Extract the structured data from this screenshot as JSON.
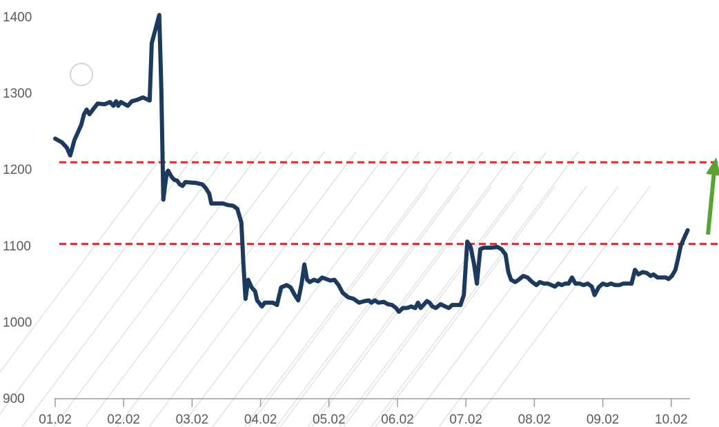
{
  "chart_data": {
    "type": "line",
    "title": "",
    "xlabel": "",
    "ylabel": "",
    "ylim": [
      900,
      1400
    ],
    "xlim": [
      0,
      9.28
    ],
    "grid": false,
    "legend": "none",
    "x_ticks": [
      {
        "x": 0,
        "label": "01.02"
      },
      {
        "x": 1,
        "label": "02.02"
      },
      {
        "x": 2,
        "label": "03.02"
      },
      {
        "x": 3,
        "label": "04.02"
      },
      {
        "x": 4,
        "label": "05.02"
      },
      {
        "x": 5,
        "label": "06.02"
      },
      {
        "x": 6,
        "label": "07.02"
      },
      {
        "x": 7,
        "label": "08.02"
      },
      {
        "x": 8,
        "label": "09.02"
      },
      {
        "x": 9,
        "label": "10.02"
      }
    ],
    "y_ticks": [
      900,
      1000,
      1100,
      1200,
      1300,
      1400
    ],
    "series": [
      {
        "color": "#1b3a5e",
        "points": [
          [
            0.0,
            1240
          ],
          [
            0.1,
            1235
          ],
          [
            0.17,
            1228
          ],
          [
            0.22,
            1218
          ],
          [
            0.28,
            1238
          ],
          [
            0.38,
            1258
          ],
          [
            0.42,
            1272
          ],
          [
            0.46,
            1278
          ],
          [
            0.5,
            1272
          ],
          [
            0.55,
            1278
          ],
          [
            0.62,
            1286
          ],
          [
            0.72,
            1285
          ],
          [
            0.8,
            1288
          ],
          [
            0.85,
            1283
          ],
          [
            0.89,
            1289
          ],
          [
            0.92,
            1283
          ],
          [
            0.96,
            1288
          ],
          [
            1.02,
            1285
          ],
          [
            1.06,
            1283
          ],
          [
            1.12,
            1289
          ],
          [
            1.2,
            1291
          ],
          [
            1.28,
            1294
          ],
          [
            1.33,
            1292
          ],
          [
            1.38,
            1290
          ],
          [
            1.41,
            1365
          ],
          [
            1.47,
            1385
          ],
          [
            1.52,
            1402
          ],
          [
            1.55,
            1305
          ],
          [
            1.58,
            1160
          ],
          [
            1.6,
            1175
          ],
          [
            1.63,
            1195
          ],
          [
            1.65,
            1198
          ],
          [
            1.7,
            1190
          ],
          [
            1.74,
            1186
          ],
          [
            1.78,
            1185
          ],
          [
            1.82,
            1180
          ],
          [
            1.86,
            1178
          ],
          [
            1.9,
            1183
          ],
          [
            2.05,
            1182
          ],
          [
            2.15,
            1180
          ],
          [
            2.2,
            1175
          ],
          [
            2.25,
            1168
          ],
          [
            2.28,
            1155
          ],
          [
            2.45,
            1155
          ],
          [
            2.52,
            1153
          ],
          [
            2.6,
            1152
          ],
          [
            2.66,
            1148
          ],
          [
            2.72,
            1130
          ],
          [
            2.75,
            1075
          ],
          [
            2.78,
            1030
          ],
          [
            2.82,
            1055
          ],
          [
            2.87,
            1045
          ],
          [
            2.92,
            1040
          ],
          [
            2.95,
            1028
          ],
          [
            3.02,
            1020
          ],
          [
            3.06,
            1025
          ],
          [
            3.12,
            1025
          ],
          [
            3.18,
            1025
          ],
          [
            3.24,
            1022
          ],
          [
            3.3,
            1045
          ],
          [
            3.38,
            1048
          ],
          [
            3.44,
            1045
          ],
          [
            3.5,
            1035
          ],
          [
            3.55,
            1028
          ],
          [
            3.6,
            1050
          ],
          [
            3.64,
            1075
          ],
          [
            3.68,
            1055
          ],
          [
            3.72,
            1052
          ],
          [
            3.78,
            1055
          ],
          [
            3.84,
            1053
          ],
          [
            3.9,
            1058
          ],
          [
            3.96,
            1056
          ],
          [
            4.02,
            1054
          ],
          [
            4.08,
            1055
          ],
          [
            4.14,
            1048
          ],
          [
            4.2,
            1038
          ],
          [
            4.28,
            1032
          ],
          [
            4.36,
            1030
          ],
          [
            4.44,
            1025
          ],
          [
            4.52,
            1027
          ],
          [
            4.58,
            1028
          ],
          [
            4.62,
            1025
          ],
          [
            4.67,
            1028
          ],
          [
            4.72,
            1025
          ],
          [
            4.8,
            1026
          ],
          [
            4.86,
            1023
          ],
          [
            4.92,
            1022
          ],
          [
            4.98,
            1018
          ],
          [
            5.02,
            1013
          ],
          [
            5.08,
            1018
          ],
          [
            5.14,
            1018
          ],
          [
            5.2,
            1020
          ],
          [
            5.26,
            1018
          ],
          [
            5.3,
            1025
          ],
          [
            5.34,
            1018
          ],
          [
            5.38,
            1022
          ],
          [
            5.43,
            1027
          ],
          [
            5.47,
            1025
          ],
          [
            5.51,
            1020
          ],
          [
            5.56,
            1018
          ],
          [
            5.63,
            1023
          ],
          [
            5.7,
            1020
          ],
          [
            5.75,
            1018
          ],
          [
            5.8,
            1022
          ],
          [
            5.86,
            1022
          ],
          [
            5.92,
            1022
          ],
          [
            5.97,
            1035
          ],
          [
            6.02,
            1105
          ],
          [
            6.07,
            1098
          ],
          [
            6.12,
            1075
          ],
          [
            6.16,
            1050
          ],
          [
            6.21,
            1095
          ],
          [
            6.26,
            1097
          ],
          [
            6.36,
            1097
          ],
          [
            6.46,
            1098
          ],
          [
            6.52,
            1095
          ],
          [
            6.58,
            1088
          ],
          [
            6.62,
            1065
          ],
          [
            6.66,
            1055
          ],
          [
            6.72,
            1052
          ],
          [
            6.77,
            1055
          ],
          [
            6.84,
            1060
          ],
          [
            6.9,
            1058
          ],
          [
            6.97,
            1052
          ],
          [
            7.03,
            1048
          ],
          [
            7.08,
            1052
          ],
          [
            7.14,
            1050
          ],
          [
            7.2,
            1050
          ],
          [
            7.25,
            1048
          ],
          [
            7.3,
            1046
          ],
          [
            7.35,
            1050
          ],
          [
            7.4,
            1048
          ],
          [
            7.45,
            1050
          ],
          [
            7.5,
            1050
          ],
          [
            7.55,
            1058
          ],
          [
            7.6,
            1050
          ],
          [
            7.66,
            1050
          ],
          [
            7.72,
            1048
          ],
          [
            7.78,
            1050
          ],
          [
            7.84,
            1046
          ],
          [
            7.88,
            1035
          ],
          [
            7.94,
            1045
          ],
          [
            8.0,
            1050
          ],
          [
            8.06,
            1048
          ],
          [
            8.12,
            1050
          ],
          [
            8.18,
            1048
          ],
          [
            8.24,
            1048
          ],
          [
            8.3,
            1050
          ],
          [
            8.36,
            1050
          ],
          [
            8.42,
            1050
          ],
          [
            8.47,
            1068
          ],
          [
            8.52,
            1062
          ],
          [
            8.58,
            1065
          ],
          [
            8.64,
            1064
          ],
          [
            8.7,
            1060
          ],
          [
            8.74,
            1062
          ],
          [
            8.8,
            1058
          ],
          [
            8.86,
            1058
          ],
          [
            8.92,
            1058
          ],
          [
            8.96,
            1056
          ],
          [
            9.01,
            1060
          ],
          [
            9.06,
            1068
          ],
          [
            9.1,
            1083
          ],
          [
            9.14,
            1100
          ],
          [
            9.2,
            1112
          ],
          [
            9.24,
            1120
          ]
        ]
      }
    ],
    "reference_lines": [
      {
        "y": 1209,
        "color": "#e4262b",
        "style": "dashed"
      },
      {
        "y": 1102,
        "color": "#e4262b",
        "style": "dashed"
      }
    ],
    "annotations": [
      {
        "type": "arrow",
        "direction": "up",
        "color": "#5aa332"
      }
    ]
  }
}
